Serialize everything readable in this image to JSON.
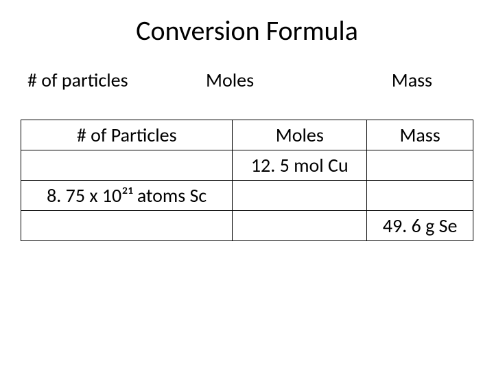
{
  "title": "Conversion Formula",
  "labels": {
    "col1": "# of particles",
    "col2": "Moles",
    "col3": "Mass"
  },
  "table": {
    "columns": [
      "# of Particles",
      "Moles",
      "Mass"
    ],
    "rows": [
      {
        "particles": "",
        "moles": "12. 5 mol Cu",
        "mass": ""
      },
      {
        "particles": "8. 75 x 10²¹ atoms Sc",
        "moles": "",
        "mass": ""
      },
      {
        "particles": "",
        "moles": "",
        "mass": "49. 6 g Se"
      }
    ],
    "column_widths": [
      "33.3%",
      "33.3%",
      "33.3%"
    ],
    "border_color": "#000000",
    "background_color": "#ffffff",
    "font_size": 28,
    "header_font_size": 28
  },
  "styling": {
    "title_fontsize": 40,
    "label_fontsize": 28,
    "font_family": "Calibri",
    "text_color": "#000000",
    "background_color": "#ffffff"
  }
}
